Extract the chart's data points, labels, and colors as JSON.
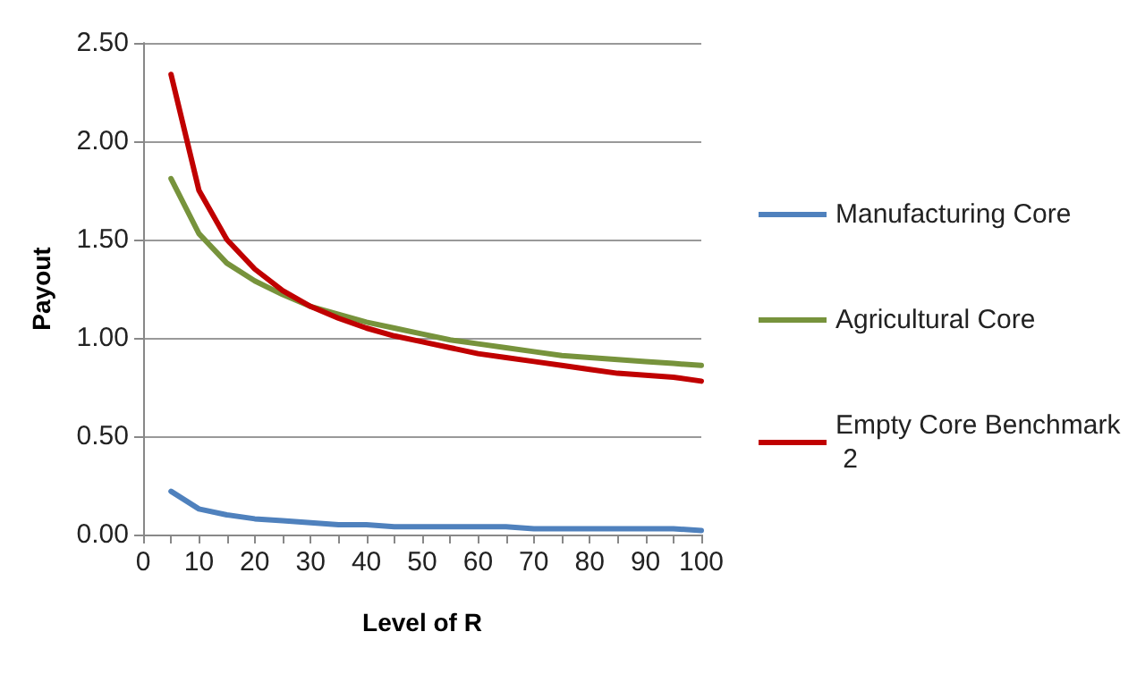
{
  "chart_data": {
    "type": "line",
    "xlabel": "Level of R",
    "ylabel": "Payout",
    "x": [
      5,
      10,
      15,
      20,
      25,
      30,
      35,
      40,
      45,
      50,
      55,
      60,
      65,
      70,
      75,
      80,
      85,
      90,
      95,
      100
    ],
    "series": [
      {
        "name": "Manufacturing Core",
        "color": "#4f81bd",
        "values": [
          0.22,
          0.13,
          0.1,
          0.08,
          0.07,
          0.06,
          0.05,
          0.05,
          0.04,
          0.04,
          0.04,
          0.04,
          0.04,
          0.03,
          0.03,
          0.03,
          0.03,
          0.03,
          0.03,
          0.02
        ]
      },
      {
        "name": "Agricultural Core",
        "color": "#77933c",
        "values": [
          1.81,
          1.53,
          1.38,
          1.29,
          1.22,
          1.16,
          1.12,
          1.08,
          1.05,
          1.02,
          0.99,
          0.97,
          0.95,
          0.93,
          0.91,
          0.9,
          0.89,
          0.88,
          0.87,
          0.86
        ]
      },
      {
        "name": "Empty Core Benchmark 2",
        "color": "#c00000",
        "values": [
          2.34,
          1.75,
          1.5,
          1.35,
          1.24,
          1.16,
          1.1,
          1.05,
          1.01,
          0.98,
          0.95,
          0.92,
          0.9,
          0.88,
          0.86,
          0.84,
          0.82,
          0.81,
          0.8,
          0.78
        ]
      }
    ],
    "xlim": [
      0,
      100
    ],
    "xticks": [
      0,
      {
        "value": 5,
        "label": null
      },
      10,
      {
        "value": 15,
        "label": null
      },
      20,
      {
        "value": 25,
        "label": null
      },
      30,
      {
        "value": 35,
        "label": null
      },
      40,
      {
        "value": 45,
        "label": null
      },
      50,
      {
        "value": 55,
        "label": null
      },
      60,
      {
        "value": 65,
        "label": null
      },
      70,
      {
        "value": 75,
        "label": null
      },
      80,
      {
        "value": 85,
        "label": null
      },
      90,
      {
        "value": 95,
        "label": null
      },
      100
    ],
    "ylim": [
      0,
      2.5
    ],
    "yticks": [
      {
        "value": 0,
        "label": "0.00"
      },
      {
        "value": 0.5,
        "label": "0.50"
      },
      {
        "value": 1,
        "label": "1.00"
      },
      {
        "value": 1.5,
        "label": "1.50"
      },
      {
        "value": 2,
        "label": "2.00"
      },
      {
        "value": 2.5,
        "label": "2.50"
      }
    ],
    "grid": "y",
    "legend": "right",
    "marker": "none",
    "line_style": "solid"
  }
}
